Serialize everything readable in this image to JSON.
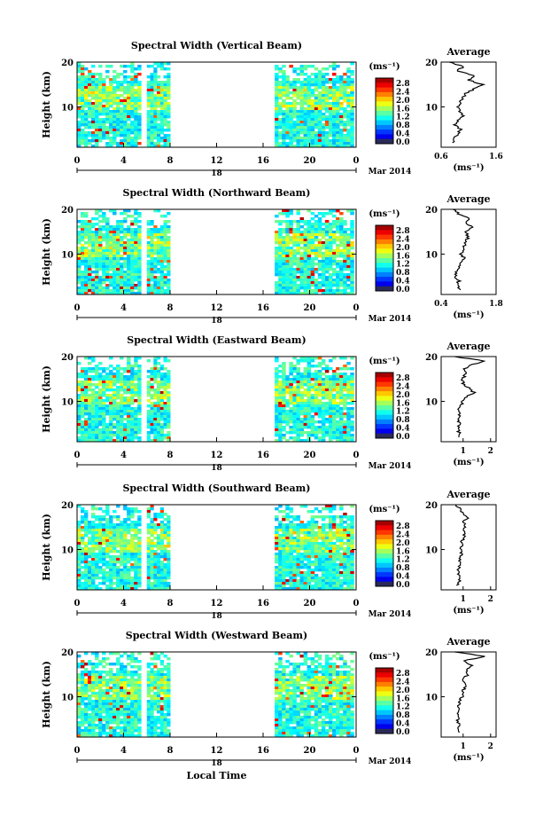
{
  "figure": {
    "xlabel": "Local Time",
    "date_label": "Mar 2014",
    "day_label": "18",
    "colorbar_unit": "(ms⁻¹)",
    "average_xlabel": "(ms⁻¹)"
  },
  "chart_data": [
    {
      "type": "heatmap",
      "title": "Spectral Width (Vertical Beam)",
      "ylabel": "Height (km)",
      "xlabel": "Local Time",
      "x_ticks": [
        "0",
        "4",
        "8",
        "12",
        "16",
        "20",
        "0"
      ],
      "xlim": [
        0,
        24
      ],
      "y_ticks": [
        "10",
        "20"
      ],
      "ylim": [
        1,
        20
      ],
      "colorbar": {
        "label": "(ms⁻¹)",
        "ticks": [
          "2.8",
          "2.4",
          "2.0",
          "1.6",
          "1.2",
          "0.8",
          "0.4",
          "0.0"
        ],
        "range": [
          0,
          2.8
        ]
      },
      "data_intervals_local_time": [
        [
          0,
          5.5
        ],
        [
          6,
          8
        ],
        [
          17,
          23.8
        ]
      ],
      "average_profile": {
        "title": "Average",
        "xlabel": "(ms⁻¹)",
        "x_ticks": [
          "0.6",
          "1.6"
        ],
        "xlim": [
          0.6,
          1.6
        ],
        "y_ticks": [
          "10",
          "20"
        ],
        "height_km": [
          2,
          3,
          4,
          5,
          6,
          7,
          8,
          9,
          10,
          11,
          12,
          13,
          14,
          15,
          16,
          17,
          18,
          19,
          20
        ],
        "value": [
          0.8,
          0.85,
          0.9,
          0.95,
          0.85,
          0.9,
          1.0,
          0.95,
          0.9,
          0.95,
          1.0,
          1.05,
          1.2,
          1.35,
          1.1,
          1.2,
          0.9,
          1.0,
          0.75
        ]
      }
    },
    {
      "type": "heatmap",
      "title": "Spectral Width (Northward Beam)",
      "ylabel": "Height (km)",
      "xlabel": "Local Time",
      "x_ticks": [
        "0",
        "4",
        "8",
        "12",
        "16",
        "20",
        "0"
      ],
      "xlim": [
        0,
        24
      ],
      "y_ticks": [
        "10",
        "20"
      ],
      "ylim": [
        1,
        20
      ],
      "colorbar": {
        "label": "(ms⁻¹)",
        "ticks": [
          "2.8",
          "2.4",
          "2.0",
          "1.6",
          "1.2",
          "0.8",
          "0.4",
          "0.0"
        ],
        "range": [
          0,
          2.8
        ]
      },
      "data_intervals_local_time": [
        [
          0,
          5.5
        ],
        [
          6,
          8
        ],
        [
          17,
          23.8
        ]
      ],
      "average_profile": {
        "title": "Average",
        "xlabel": "(ms⁻¹)",
        "x_ticks": [
          "0.4",
          "1.8"
        ],
        "xlim": [
          0.4,
          1.8
        ],
        "y_ticks": [
          "10",
          "20"
        ],
        "height_km": [
          2,
          3,
          4,
          5,
          6,
          7,
          8,
          9,
          10,
          11,
          12,
          13,
          14,
          15,
          16,
          17,
          18,
          19,
          20
        ],
        "value": [
          0.9,
          0.8,
          0.85,
          0.75,
          0.8,
          0.85,
          0.9,
          1.0,
          0.9,
          0.95,
          1.0,
          1.05,
          1.1,
          1.0,
          1.2,
          1.0,
          1.1,
          0.85,
          0.7
        ]
      }
    },
    {
      "type": "heatmap",
      "title": "Spectral Width (Eastward Beam)",
      "ylabel": "Height (km)",
      "xlabel": "Local Time",
      "x_ticks": [
        "0",
        "4",
        "8",
        "12",
        "16",
        "20",
        "0"
      ],
      "xlim": [
        0,
        24
      ],
      "y_ticks": [
        "10",
        "20"
      ],
      "ylim": [
        1,
        20
      ],
      "colorbar": {
        "label": "(ms⁻¹)",
        "ticks": [
          "2.8",
          "2.4",
          "2.0",
          "1.6",
          "1.2",
          "0.8",
          "0.4",
          "0.0"
        ],
        "range": [
          0,
          2.8
        ]
      },
      "data_intervals_local_time": [
        [
          0,
          5.5
        ],
        [
          6,
          8
        ],
        [
          17,
          23.8
        ]
      ],
      "average_profile": {
        "title": "Average",
        "xlabel": "(ms⁻¹)",
        "x_ticks": [
          "1",
          "2"
        ],
        "xlim": [
          0.2,
          2.2
        ],
        "y_ticks": [
          "10",
          "20"
        ],
        "height_km": [
          2,
          3,
          4,
          5,
          6,
          7,
          8,
          9,
          10,
          11,
          12,
          13,
          14,
          15,
          16,
          17,
          18,
          19,
          20
        ],
        "value": [
          0.9,
          0.85,
          0.8,
          0.85,
          0.8,
          0.85,
          0.8,
          0.9,
          1.0,
          1.1,
          1.4,
          1.2,
          1.0,
          0.95,
          1.1,
          1.0,
          1.2,
          1.8,
          0.7
        ]
      }
    },
    {
      "type": "heatmap",
      "title": "Spectral Width (Southward Beam)",
      "ylabel": "Height (km)",
      "xlabel": "Local Time",
      "x_ticks": [
        "0",
        "4",
        "8",
        "12",
        "16",
        "20",
        "0"
      ],
      "xlim": [
        0,
        24
      ],
      "y_ticks": [
        "10",
        "20"
      ],
      "ylim": [
        1,
        20
      ],
      "colorbar": {
        "label": "(ms⁻¹)",
        "ticks": [
          "2.8",
          "2.4",
          "2.0",
          "1.6",
          "1.2",
          "0.8",
          "0.4",
          "0.0"
        ],
        "range": [
          0,
          2.8
        ]
      },
      "data_intervals_local_time": [
        [
          0,
          5.5
        ],
        [
          6,
          8
        ],
        [
          17,
          23.8
        ]
      ],
      "average_profile": {
        "title": "Average",
        "xlabel": "(ms⁻¹)",
        "x_ticks": [
          "1",
          "2"
        ],
        "xlim": [
          0.2,
          2.2
        ],
        "y_ticks": [
          "10",
          "20"
        ],
        "height_km": [
          2,
          3,
          4,
          5,
          6,
          7,
          8,
          9,
          10,
          11,
          12,
          13,
          14,
          15,
          16,
          17,
          18,
          19,
          20
        ],
        "value": [
          0.8,
          0.85,
          0.9,
          0.8,
          0.85,
          0.9,
          0.85,
          0.95,
          0.9,
          1.0,
          0.95,
          1.05,
          1.0,
          1.1,
          1.0,
          1.15,
          1.0,
          0.9,
          0.75
        ]
      }
    },
    {
      "type": "heatmap",
      "title": "Spectral Width (Westward Beam)",
      "ylabel": "Height (km)",
      "xlabel": "Local Time",
      "x_ticks": [
        "0",
        "4",
        "8",
        "12",
        "16",
        "20",
        "0"
      ],
      "xlim": [
        0,
        24
      ],
      "y_ticks": [
        "10",
        "20"
      ],
      "ylim": [
        1,
        20
      ],
      "colorbar": {
        "label": "(ms⁻¹)",
        "ticks": [
          "2.8",
          "2.4",
          "2.0",
          "1.6",
          "1.2",
          "0.8",
          "0.4",
          "0.0"
        ],
        "range": [
          0,
          2.8
        ]
      },
      "data_intervals_local_time": [
        [
          0,
          5.5
        ],
        [
          6,
          8
        ],
        [
          17,
          23.8
        ]
      ],
      "average_profile": {
        "title": "Average",
        "xlabel": "(ms⁻¹)",
        "x_ticks": [
          "1",
          "2"
        ],
        "xlim": [
          0.2,
          2.2
        ],
        "y_ticks": [
          "10",
          "20"
        ],
        "height_km": [
          2,
          3,
          4,
          5,
          6,
          7,
          8,
          9,
          10,
          11,
          12,
          13,
          14,
          15,
          16,
          17,
          18,
          19,
          20
        ],
        "value": [
          0.85,
          0.8,
          0.85,
          0.8,
          0.85,
          0.8,
          0.85,
          0.9,
          0.95,
          1.0,
          1.05,
          1.1,
          1.0,
          1.2,
          1.1,
          1.3,
          1.0,
          1.8,
          0.7
        ]
      }
    }
  ]
}
